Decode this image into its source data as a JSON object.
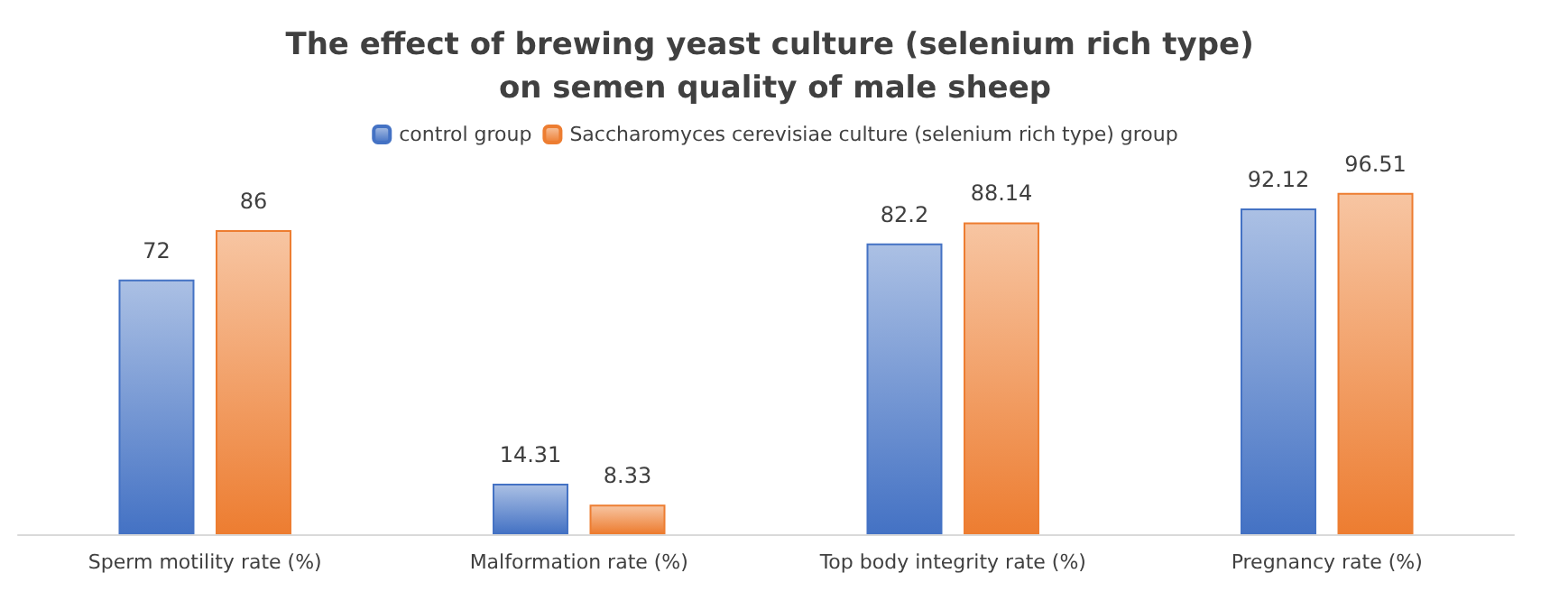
{
  "chart_data": {
    "type": "bar",
    "title": "The effect of brewing yeast culture (selenium rich type) on semen quality of male sheep",
    "categories": [
      "Sperm motility rate (%)",
      "Malformation rate (%)",
      "Top body integrity rate (%)",
      "Pregnancy rate (%)"
    ],
    "series": [
      {
        "name": "control group",
        "color": "#4472c4",
        "values": [
          72,
          14.31,
          82.2,
          92.12
        ]
      },
      {
        "name": "Saccharomyces cerevisiae culture (selenium rich type) group",
        "color": "#ed7d31",
        "values": [
          86,
          8.33,
          88.14,
          96.51
        ]
      }
    ],
    "data_labels": true,
    "legend": "top",
    "grid": false
  }
}
